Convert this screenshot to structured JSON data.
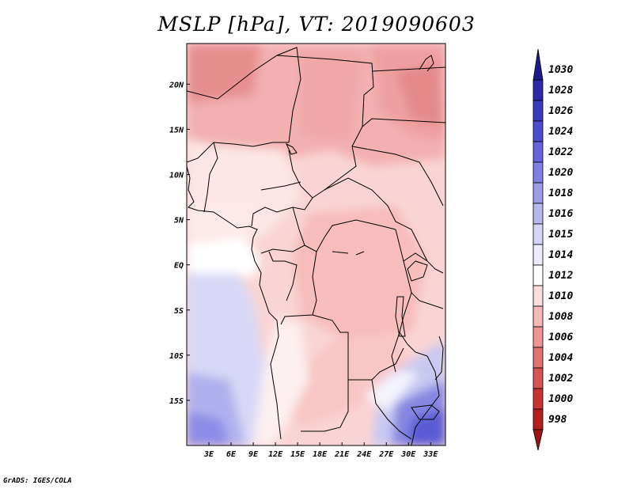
{
  "title": "MSLP [hPa], VT: 2019090603",
  "footer": "GrADS: IGES/COLA",
  "map": {
    "lat_labels": [
      "20N",
      "15N",
      "10N",
      "5N",
      "EQ",
      "5S",
      "10S",
      "15S"
    ],
    "lat_values": [
      20,
      15,
      10,
      5,
      0,
      -5,
      -10,
      -15
    ],
    "lon_labels": [
      "3E",
      "6E",
      "9E",
      "12E",
      "15E",
      "18E",
      "21E",
      "24E",
      "27E",
      "30E",
      "33E"
    ],
    "lon_values": [
      3,
      6,
      9,
      12,
      15,
      18,
      21,
      24,
      27,
      30,
      33
    ],
    "lon_range": [
      0,
      35
    ],
    "lat_range": [
      -20,
      24.5
    ]
  },
  "legend": {
    "values": [
      "1030",
      "1028",
      "1026",
      "1024",
      "1022",
      "1020",
      "1018",
      "1016",
      "1015",
      "1014",
      "1012",
      "1010",
      "1008",
      "1006",
      "1004",
      "1002",
      "1000",
      "998"
    ],
    "colors": [
      "#1c1a8c",
      "#2b2aa8",
      "#3a3ac0",
      "#4c4cd0",
      "#6464dc",
      "#8080e4",
      "#9c9ce8",
      "#b8b8f0",
      "#d4d4f6",
      "#ececfa",
      "#ffffff",
      "#fcdcdc",
      "#f7b8b8",
      "#ef9494",
      "#e47474",
      "#d85454",
      "#c83434",
      "#b41e1e",
      "#9c1414"
    ]
  }
}
